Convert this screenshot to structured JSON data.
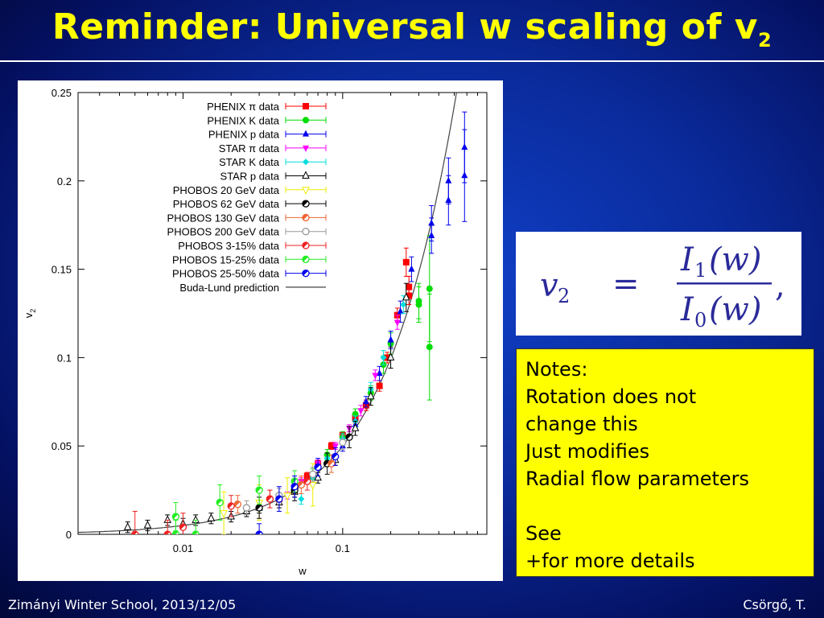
{
  "slide": {
    "title_main": "Reminder: Universal w scaling of v",
    "title_sub": "2",
    "footer_left": "Zimányi Winter School, 2013/12/05",
    "footer_right": "Csörgő, T."
  },
  "formula": {
    "lhs": "v",
    "lhs_sub": "2",
    "eq": "=",
    "num": "I",
    "num_sub": "1",
    "num_arg": "(w)",
    "den": "I",
    "den_sub": "0",
    "den_arg": "(w)",
    "tail": ","
  },
  "notes": {
    "lines": [
      "Notes:",
      "Rotation does not",
      "change this",
      "Just modifies",
      "Radial flow parameters",
      "",
      "See",
      "+for more details"
    ]
  },
  "chart_data": {
    "type": "scatter",
    "xscale": "log",
    "xlabel": "w",
    "ylabel": "v2",
    "xlim": [
      0.0022,
      0.8
    ],
    "ylim": [
      0,
      0.25
    ],
    "xticks": [
      {
        "value": 0.01,
        "label": "0.01"
      },
      {
        "value": 0.1,
        "label": "0.1"
      }
    ],
    "yticks": [
      {
        "value": 0,
        "label": "0"
      },
      {
        "value": 0.05,
        "label": "0.05"
      },
      {
        "value": 0.1,
        "label": "0.1"
      },
      {
        "value": 0.15,
        "label": "0.15"
      },
      {
        "value": 0.2,
        "label": "0.2"
      },
      {
        "value": 0.25,
        "label": "0.25"
      }
    ],
    "legend_position": "top-right",
    "series": [
      {
        "name": "PHENIX π data",
        "color": "#ff0000",
        "marker": "square",
        "points": [
          [
            0.25,
            0.154
          ],
          [
            0.26,
            0.14
          ],
          [
            0.26,
            0.135
          ],
          [
            0.22,
            0.124
          ],
          [
            0.19,
            0.1
          ],
          [
            0.17,
            0.084
          ],
          [
            0.14,
            0.073
          ],
          [
            0.12,
            0.066
          ],
          [
            0.1,
            0.056
          ],
          [
            0.085,
            0.05
          ],
          [
            0.07,
            0.04
          ],
          [
            0.06,
            0.033
          ],
          [
            0.05,
            0.025
          ],
          [
            0.04,
            0.02
          ]
        ],
        "errors": [
          0.008,
          0.006,
          0.005,
          0.004,
          0.003,
          0.003,
          0.003,
          0.003,
          0.002,
          0.002,
          0.002,
          0.002,
          0.002,
          0.002
        ]
      },
      {
        "name": "PHENIX K data",
        "color": "#00dd00",
        "marker": "circle",
        "points": [
          [
            0.35,
            0.139
          ],
          [
            0.35,
            0.106
          ],
          [
            0.3,
            0.13
          ],
          [
            0.3,
            0.132
          ],
          [
            0.2,
            0.108
          ],
          [
            0.18,
            0.096
          ],
          [
            0.15,
            0.08
          ],
          [
            0.12,
            0.068
          ],
          [
            0.1,
            0.055
          ],
          [
            0.08,
            0.045
          ],
          [
            0.065,
            0.034
          ]
        ],
        "errors": [
          0.03,
          0.03,
          0.01,
          0.01,
          0.006,
          0.005,
          0.004,
          0.003,
          0.003,
          0.003,
          0.003
        ]
      },
      {
        "name": "PHENIX p data",
        "color": "#0000ee",
        "marker": "triangle",
        "points": [
          [
            0.58,
            0.219
          ],
          [
            0.58,
            0.203
          ],
          [
            0.46,
            0.2
          ],
          [
            0.46,
            0.189
          ],
          [
            0.36,
            0.176
          ],
          [
            0.36,
            0.169
          ],
          [
            0.27,
            0.15
          ],
          [
            0.23,
            0.126
          ],
          [
            0.2,
            0.11
          ],
          [
            0.17,
            0.091
          ],
          [
            0.14,
            0.075
          ],
          [
            0.12,
            0.062
          ],
          [
            0.1,
            0.05
          ]
        ],
        "errors": [
          0.02,
          0.026,
          0.013,
          0.014,
          0.01,
          0.01,
          0.007,
          0.006,
          0.005,
          0.004,
          0.003,
          0.003,
          0.003
        ]
      },
      {
        "name": "STAR π data",
        "color": "#ff00ff",
        "marker": "triangle-down",
        "points": [
          [
            0.22,
            0.12
          ],
          [
            0.16,
            0.09
          ],
          [
            0.13,
            0.07
          ],
          [
            0.11,
            0.06
          ],
          [
            0.09,
            0.05
          ],
          [
            0.07,
            0.04
          ],
          [
            0.055,
            0.03
          ],
          [
            0.045,
            0.022
          ]
        ],
        "errors": [
          0.004,
          0.003,
          0.003,
          0.002,
          0.002,
          0.002,
          0.002,
          0.002
        ]
      },
      {
        "name": "STAR K data",
        "color": "#00dddd",
        "marker": "diamond",
        "points": [
          [
            0.24,
            0.13
          ],
          [
            0.18,
            0.1
          ],
          [
            0.15,
            0.082
          ],
          [
            0.12,
            0.064
          ],
          [
            0.1,
            0.054
          ],
          [
            0.08,
            0.043
          ],
          [
            0.065,
            0.032
          ],
          [
            0.055,
            0.02
          ]
        ],
        "errors": [
          0.005,
          0.004,
          0.004,
          0.003,
          0.003,
          0.003,
          0.003,
          0.003
        ]
      },
      {
        "name": "STAR p data",
        "color": "#000000",
        "marker": "open-triangle",
        "points": [
          [
            0.0045,
            0.004
          ],
          [
            0.006,
            0.005
          ],
          [
            0.008,
            0.008
          ],
          [
            0.01,
            0.006
          ],
          [
            0.012,
            0.008
          ],
          [
            0.015,
            0.009
          ],
          [
            0.02,
            0.01
          ],
          [
            0.025,
            0.013
          ],
          [
            0.03,
            0.015
          ],
          [
            0.04,
            0.018
          ],
          [
            0.05,
            0.024
          ],
          [
            0.07,
            0.032
          ],
          [
            0.09,
            0.042
          ],
          [
            0.12,
            0.06
          ],
          [
            0.15,
            0.078
          ],
          [
            0.2,
            0.1
          ],
          [
            0.25,
            0.134
          ]
        ],
        "errors": [
          0.003,
          0.003,
          0.003,
          0.003,
          0.003,
          0.003,
          0.003,
          0.003,
          0.003,
          0.003,
          0.003,
          0.003,
          0.003,
          0.004,
          0.005,
          0.006,
          0.008
        ]
      },
      {
        "name": "PHOBOS 20 GeV data",
        "color": "#eeee00",
        "marker": "open-triangle-down",
        "points": [
          [
            0.018,
            0.012
          ],
          [
            0.03,
            0.018
          ],
          [
            0.045,
            0.022
          ],
          [
            0.065,
            0.028
          ]
        ],
        "errors": [
          0.012,
          0.01,
          0.01,
          0.012
        ]
      },
      {
        "name": "PHOBOS 62 GeV data",
        "color": "#000000",
        "marker": "half-circle",
        "points": [
          [
            0.03,
            0.015
          ],
          [
            0.05,
            0.025
          ],
          [
            0.08,
            0.04
          ],
          [
            0.11,
            0.055
          ]
        ],
        "errors": [
          0.006,
          0.006,
          0.006,
          0.006
        ]
      },
      {
        "name": "PHOBOS 130 GeV data",
        "color": "#ee6633",
        "marker": "half-circle",
        "points": [
          [
            0.022,
            0.017
          ],
          [
            0.035,
            0.02
          ],
          [
            0.055,
            0.028
          ],
          [
            0.085,
            0.04
          ]
        ],
        "errors": [
          0.005,
          0.005,
          0.005,
          0.005
        ]
      },
      {
        "name": "PHOBOS 200 GeV data",
        "color": "#999999",
        "marker": "open-circle",
        "points": [
          [
            0.025,
            0.015
          ],
          [
            0.04,
            0.022
          ],
          [
            0.065,
            0.034
          ],
          [
            0.1,
            0.052
          ]
        ],
        "errors": [
          0.004,
          0.004,
          0.004,
          0.004
        ]
      },
      {
        "name": "PHOBOS 3-15% data",
        "color": "#ee2222",
        "marker": "half-circle",
        "points": [
          [
            0.005,
            0
          ],
          [
            0.008,
            0
          ],
          [
            0.01,
            0.004
          ],
          [
            0.02,
            0.016
          ],
          [
            0.035,
            0.02
          ],
          [
            0.06,
            0.03
          ]
        ],
        "errors": [
          0.013,
          0.008,
          0.008,
          0.006,
          0.005,
          0.005
        ]
      },
      {
        "name": "PHOBOS 15-25% data",
        "color": "#22ee22",
        "marker": "half-circle",
        "points": [
          [
            0.009,
            0
          ],
          [
            0.009,
            0.01
          ],
          [
            0.012,
            0
          ],
          [
            0.017,
            0.018
          ],
          [
            0.03,
            0.025
          ],
          [
            0.05,
            0.03
          ]
        ],
        "errors": [
          0.008,
          0.008,
          0.008,
          0.01,
          0.008,
          0.006
        ]
      },
      {
        "name": "PHOBOS 25-50% data",
        "color": "#0000ee",
        "marker": "half-circle",
        "points": [
          [
            0.03,
            0
          ],
          [
            0.04,
            0.02
          ],
          [
            0.05,
            0.027
          ],
          [
            0.07,
            0.038
          ],
          [
            0.09,
            0.044
          ]
        ],
        "errors": [
          0.006,
          0.007,
          0.006,
          0.005,
          0.005
        ]
      }
    ],
    "curve": {
      "name": "Buda-Lund prediction",
      "color": "#444444"
    }
  }
}
